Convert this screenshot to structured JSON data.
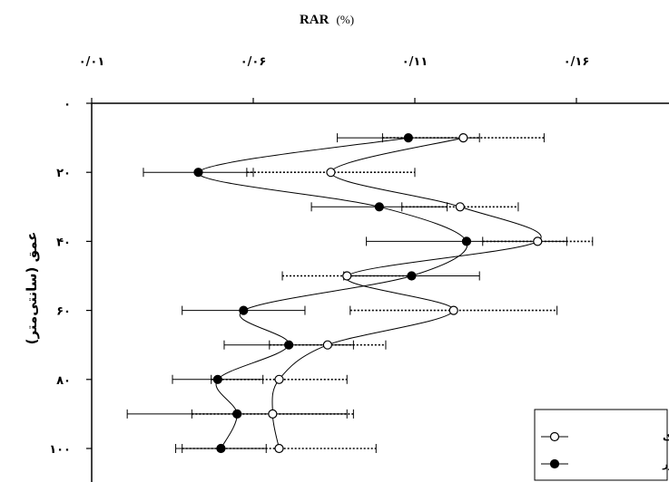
{
  "chart_data": {
    "type": "scatter",
    "title": "RAR",
    "title_unit": "(%)",
    "xlabel": "RAR (%)",
    "ylabel": "عمق (سانتی‌متر)",
    "xlim": [
      0.01,
      0.19
    ],
    "ylim": [
      0,
      105
    ],
    "x_axis_position": "top",
    "y_axis_inverted": true,
    "grid": false,
    "legend_position": "bottom-right",
    "x_ticks": [
      {
        "value": 0.01,
        "label": "۰/۰۱"
      },
      {
        "value": 0.06,
        "label": "۰/۰۶"
      },
      {
        "value": 0.11,
        "label": "۰/۱۱"
      },
      {
        "value": 0.16,
        "label": "۰/۱۶"
      }
    ],
    "y_ticks": [
      {
        "value": 0,
        "label": "۰"
      },
      {
        "value": 20,
        "label": "۲۰"
      },
      {
        "value": 40,
        "label": "۴۰"
      },
      {
        "value": 60,
        "label": "۶۰"
      },
      {
        "value": 80,
        "label": "۸۰"
      },
      {
        "value": 100,
        "label": "۱۰۰"
      }
    ],
    "series": [
      {
        "name": "پروفیل نزدیک",
        "marker": "open-circle",
        "error_bar_style": "dotted",
        "depth": [
          10,
          20,
          30,
          40,
          50,
          60,
          70,
          80,
          90,
          100
        ],
        "values": [
          0.125,
          0.084,
          0.124,
          0.148,
          0.089,
          0.122,
          0.083,
          0.068,
          0.066,
          0.068
        ],
        "err": [
          0.025,
          0.026,
          0.018,
          0.017,
          0.02,
          0.032,
          0.018,
          0.021,
          0.025,
          0.03
        ]
      },
      {
        "name": "پروفیل دور",
        "marker": "filled-circle",
        "error_bar_style": "solid",
        "depth": [
          10,
          20,
          30,
          40,
          50,
          60,
          70,
          80,
          90,
          100
        ],
        "values": [
          0.108,
          0.043,
          0.099,
          0.126,
          0.109,
          0.057,
          0.071,
          0.049,
          0.055,
          0.05
        ],
        "err": [
          0.022,
          0.017,
          0.021,
          0.031,
          0.021,
          0.019,
          0.02,
          0.014,
          0.034,
          0.014
        ]
      }
    ]
  },
  "colors": {
    "line": "#000000",
    "marker_open_fill": "#ffffff",
    "marker_filled": "#000000",
    "background": "#ffffff"
  }
}
